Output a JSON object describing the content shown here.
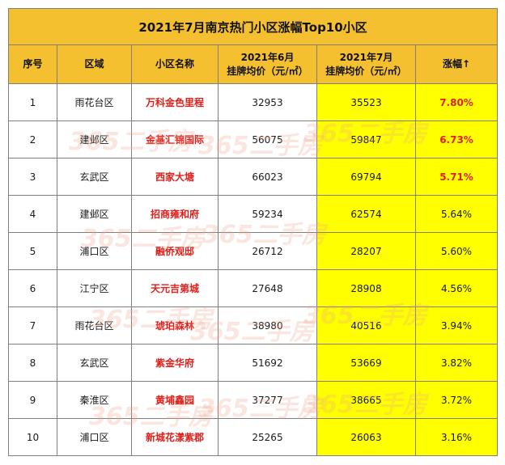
{
  "title": "2021年7月南京热门小区涨幅Top10小区",
  "headers": {
    "rank": "序号",
    "district": "区域",
    "name": "小区名称",
    "june_line1": "2021年6月",
    "june_line2": "挂牌均价（元/㎡）",
    "july_line1": "2021年7月",
    "july_line2": "挂牌均价（元/㎡）",
    "growth": "涨幅↑"
  },
  "rows": [
    {
      "rank": "1",
      "district": "雨花台区",
      "name": "万科金色里程",
      "june": "32953",
      "july": "35523",
      "growth": "7.80%"
    },
    {
      "rank": "2",
      "district": "建邺区",
      "name": "金基汇锦国际",
      "june": "56075",
      "july": "59847",
      "growth": "6.73%"
    },
    {
      "rank": "3",
      "district": "玄武区",
      "name": "西家大塘",
      "june": "66023",
      "july": "69794",
      "growth": "5.71%"
    },
    {
      "rank": "4",
      "district": "建邺区",
      "name": "招商雍和府",
      "june": "59234",
      "july": "62574",
      "growth": "5.64%"
    },
    {
      "rank": "5",
      "district": "浦口区",
      "name": "融侨观邸",
      "june": "26712",
      "july": "28207",
      "growth": "5.60%"
    },
    {
      "rank": "6",
      "district": "江宁区",
      "name": "天元吉第城",
      "june": "27648",
      "july": "28908",
      "growth": "4.56%"
    },
    {
      "rank": "7",
      "district": "雨花台区",
      "name": "琥珀森林",
      "june": "38980",
      "july": "40516",
      "growth": "3.94%"
    },
    {
      "rank": "8",
      "district": "玄武区",
      "name": "紫金华府",
      "june": "51692",
      "july": "53669",
      "growth": "3.82%"
    },
    {
      "rank": "9",
      "district": "秦淮区",
      "name": "黄埔鑫园",
      "june": "37277",
      "july": "38665",
      "growth": "3.72%"
    },
    {
      "rank": "10",
      "district": "浦口区",
      "name": "新城花漾紫郡",
      "june": "25265",
      "july": "26063",
      "growth": "3.16%"
    }
  ],
  "highlight_color": "#ffff00",
  "header_color": "#f5c02f",
  "accent_red": "#e0201b",
  "watermark": "365二手房"
}
